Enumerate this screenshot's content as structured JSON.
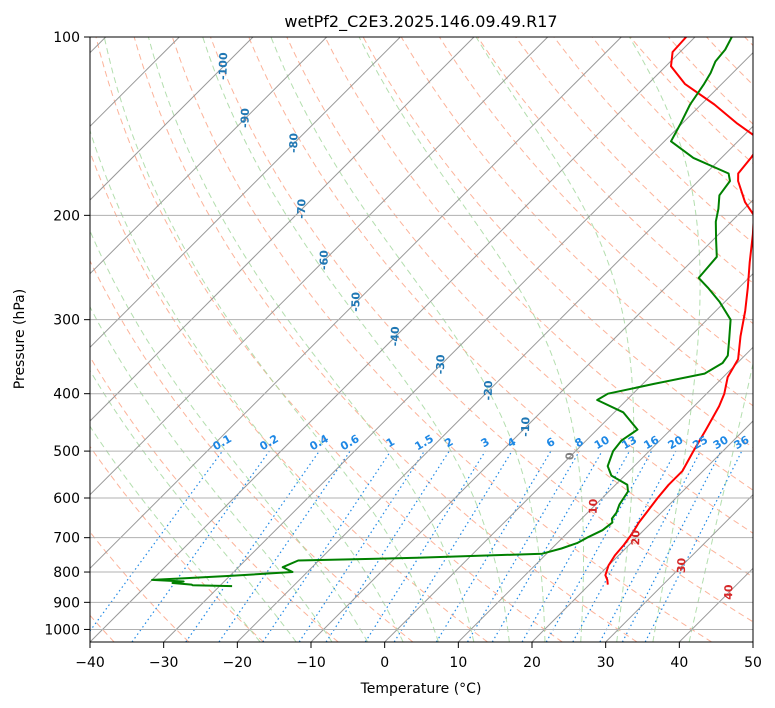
{
  "chart_data": {
    "type": "skew-t",
    "title": "wetPf2_C2E3.2025.146.09.49.R17",
    "xlabel": "Temperature (°C)",
    "ylabel": "Pressure (hPa)",
    "xlim": [
      -40,
      50
    ],
    "ylim": [
      1050,
      100
    ],
    "y_scale": "log",
    "grid": true,
    "x_ticks": [
      -40,
      -30,
      -20,
      -10,
      0,
      10,
      20,
      30,
      40,
      50
    ],
    "x_tick_labels": [
      "−40",
      "−30",
      "−20",
      "−10",
      "0",
      "10",
      "20",
      "30",
      "40",
      "50"
    ],
    "y_ticks": [
      100,
      200,
      300,
      400,
      500,
      600,
      700,
      800,
      900,
      1000
    ],
    "y_tick_labels": [
      "100",
      "200",
      "300",
      "400",
      "500",
      "600",
      "700",
      "800",
      "900",
      "1000"
    ],
    "series": [
      {
        "color": "#ff0000",
        "points": [
          [
            22.5,
            840
          ],
          [
            21.8,
            825
          ],
          [
            20.9,
            810
          ],
          [
            20.0,
            780
          ],
          [
            19.5,
            750
          ],
          [
            19.3,
            720
          ],
          [
            18.9,
            690
          ],
          [
            18.3,
            660
          ],
          [
            17.9,
            630
          ],
          [
            17.5,
            600
          ],
          [
            17.2,
            570
          ],
          [
            17.2,
            540
          ],
          [
            16.0,
            500
          ],
          [
            14.8,
            460
          ],
          [
            13.4,
            420
          ],
          [
            12.4,
            400
          ],
          [
            10.6,
            375
          ],
          [
            9.6,
            350
          ],
          [
            6.8,
            320
          ],
          [
            4.0,
            290
          ],
          [
            1.2,
            265
          ],
          [
            -2.0,
            240
          ],
          [
            -5.4,
            215
          ],
          [
            -7.8,
            200
          ],
          [
            -10.8,
            190
          ],
          [
            -14.6,
            175
          ],
          [
            -15.6,
            170
          ],
          [
            -16.0,
            160
          ],
          [
            -16.7,
            150
          ],
          [
            -22.5,
            140
          ],
          [
            -28.2,
            130
          ],
          [
            -35.0,
            120
          ],
          [
            -39.3,
            112
          ],
          [
            -41.0,
            106
          ],
          [
            -41.2,
            100
          ]
        ]
      },
      {
        "color": "#008000",
        "points": [
          [
            -28.3,
            845
          ],
          [
            -33.8,
            842
          ],
          [
            -34.0,
            840
          ],
          [
            -36.8,
            835
          ],
          [
            -35.5,
            830
          ],
          [
            -40.0,
            825
          ],
          [
            -36.1,
            820
          ],
          [
            -30.0,
            812
          ],
          [
            -22.0,
            800
          ],
          [
            -24.0,
            785
          ],
          [
            -22.8,
            765
          ],
          [
            -7.0,
            757
          ],
          [
            9.4,
            745
          ],
          [
            11.3,
            730
          ],
          [
            12.7,
            715
          ],
          [
            13.3,
            700
          ],
          [
            14.4,
            680
          ],
          [
            14.7,
            660
          ],
          [
            14.1,
            650
          ],
          [
            13.9,
            635
          ],
          [
            13.2,
            615
          ],
          [
            12.9,
            600
          ],
          [
            12.6,
            585
          ],
          [
            11.6,
            570
          ],
          [
            8.2,
            550
          ],
          [
            6.4,
            530
          ],
          [
            5.1,
            500
          ],
          [
            4.8,
            480
          ],
          [
            5.5,
            460
          ],
          [
            1.2,
            430
          ],
          [
            -4.0,
            410
          ],
          [
            -3.4,
            400
          ],
          [
            1.5,
            385
          ],
          [
            7.0,
            370
          ],
          [
            8.0,
            355
          ],
          [
            7.7,
            345
          ],
          [
            5.8,
            325
          ],
          [
            3.2,
            300
          ],
          [
            -0.7,
            280
          ],
          [
            -4.2,
            265
          ],
          [
            -6.8,
            255
          ],
          [
            -7.0,
            245
          ],
          [
            -7.2,
            235
          ],
          [
            -9.6,
            220
          ],
          [
            -12.1,
            205
          ],
          [
            -13.5,
            195
          ],
          [
            -15.2,
            185
          ],
          [
            -15.7,
            175
          ],
          [
            -16.9,
            170
          ],
          [
            -23.8,
            160
          ],
          [
            -29.1,
            150
          ],
          [
            -30.2,
            140
          ],
          [
            -31.5,
            130
          ],
          [
            -32.4,
            120
          ],
          [
            -33.0,
            115
          ],
          [
            -33.9,
            110
          ],
          [
            -34.2,
            105
          ],
          [
            -35.0,
            100
          ]
        ]
      }
    ],
    "annotations": {
      "isotherm_labels": [
        "-100",
        "-90",
        "-80",
        "-70",
        "-60",
        "-50",
        "-40",
        "-30",
        "-20",
        "-10",
        "0",
        "10",
        "20",
        "30",
        "40"
      ],
      "mixing_ratio_labels": [
        "0.1",
        "0.2",
        "0.4",
        "0.6",
        "1",
        "1.5",
        "2",
        "3",
        "4",
        "6",
        "8",
        "10",
        "13",
        "16",
        "20",
        "25",
        "30",
        "36"
      ],
      "colors": {
        "cold_isotherm_label": "#1f77b4",
        "warm_isotherm_label": "#d62728",
        "zero_isotherm_label": "#808080",
        "mixing_ratio": "#1e88e5",
        "dry_adiabat": "#fcab8f",
        "moist_adiabat": "#a6d8a0",
        "saturated_lines": "#d9c4a0",
        "isotherm": "#999999"
      }
    }
  }
}
